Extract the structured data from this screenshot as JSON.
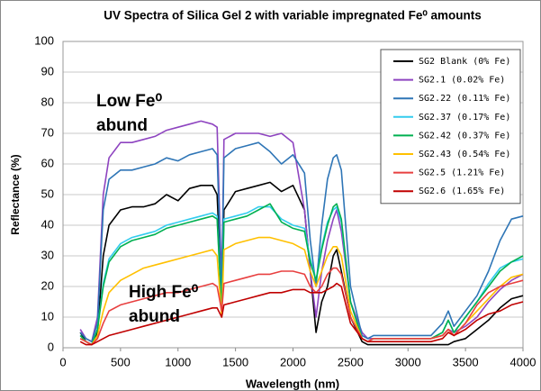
{
  "chart_data": {
    "type": "line",
    "title": "UV Spectra of Silica Gel 2 with variable impregnated Fe⁰ amounts",
    "x_label": "Wavelength (nm)",
    "y_label": "Reflectance (%)",
    "annotations": [
      "Low Fe⁰",
      "abund",
      "High Fe⁰",
      "abund"
    ],
    "x": [
      150,
      200,
      250,
      300,
      350,
      400,
      500,
      600,
      700,
      800,
      900,
      1000,
      1100,
      1200,
      1300,
      1340,
      1380,
      1400,
      1500,
      1600,
      1700,
      1800,
      1900,
      2000,
      2100,
      2150,
      2200,
      2250,
      2300,
      2350,
      2380,
      2420,
      2500,
      2600,
      2650,
      2700,
      2800,
      3000,
      3200,
      3300,
      3350,
      3400,
      3500,
      3600,
      3700,
      3800,
      3900,
      4000
    ],
    "xlim": [
      0,
      4000
    ],
    "xticks": [
      0,
      500,
      1000,
      1500,
      2000,
      2500,
      3000,
      3500,
      4000
    ],
    "ylim": [
      0,
      100
    ],
    "yticks": [
      0,
      10,
      20,
      30,
      40,
      50,
      60,
      70,
      80,
      90,
      100
    ],
    "grid": true,
    "legend": "upper right",
    "series": [
      {
        "name": "SG2 Blank (0% Fe)",
        "color": "#000000",
        "values": [
          5,
          2,
          1,
          5,
          30,
          40,
          45,
          46,
          46,
          47,
          50,
          48,
          52,
          53,
          53,
          50,
          15,
          45,
          51,
          52,
          53,
          54,
          51,
          53,
          45,
          25,
          5,
          15,
          20,
          30,
          32,
          25,
          10,
          2,
          1,
          1,
          1,
          1,
          1,
          1,
          1,
          2,
          3,
          6,
          9,
          13,
          16,
          17
        ]
      },
      {
        "name": "SG2.1 (0.02% Fe)",
        "color": "#8e44c0",
        "values": [
          6,
          3,
          2,
          10,
          50,
          62,
          67,
          67,
          68,
          69,
          71,
          72,
          73,
          74,
          73,
          72,
          20,
          68,
          70,
          70,
          70,
          69,
          70,
          67,
          45,
          25,
          10,
          25,
          35,
          42,
          45,
          38,
          15,
          5,
          3,
          3,
          3,
          3,
          3,
          4,
          6,
          5,
          7,
          10,
          15,
          19,
          22,
          24
        ]
      },
      {
        "name": "SG2.22 (0.11% Fe)",
        "color": "#2e75b6",
        "values": [
          5,
          3,
          2,
          8,
          45,
          55,
          58,
          58,
          59,
          60,
          62,
          61,
          63,
          64,
          65,
          63,
          18,
          62,
          65,
          66,
          67,
          64,
          60,
          63,
          57,
          35,
          20,
          40,
          55,
          62,
          63,
          58,
          20,
          4,
          3,
          4,
          4,
          4,
          4,
          8,
          12,
          7,
          12,
          17,
          25,
          35,
          42,
          43
        ]
      },
      {
        "name": "SG2.37 (0.17% Fe)",
        "color": "#33ccee",
        "values": [
          4,
          2,
          1,
          6,
          21,
          29,
          34,
          36,
          37,
          38,
          40,
          41,
          42,
          43,
          44,
          43,
          12,
          42,
          43,
          44,
          46,
          46,
          42,
          40,
          39,
          29,
          22,
          33,
          41,
          45,
          46,
          41,
          15,
          3,
          2,
          3,
          3,
          3,
          3,
          5,
          9,
          5,
          10,
          15,
          21,
          26,
          28,
          29
        ]
      },
      {
        "name": "SG2.42 (0.37% Fe)",
        "color": "#00b050",
        "values": [
          4,
          2,
          1,
          6,
          20,
          28,
          33,
          35,
          36,
          37,
          39,
          40,
          41,
          42,
          43,
          42,
          12,
          41,
          42,
          43,
          45,
          47,
          41,
          39,
          38,
          28,
          22,
          32,
          40,
          46,
          47,
          42,
          15,
          3,
          2,
          3,
          3,
          3,
          3,
          5,
          9,
          5,
          10,
          15,
          20,
          25,
          28,
          30
        ]
      },
      {
        "name": "SG2.43 (0.54% Fe)",
        "color": "#ffc000",
        "values": [
          3,
          2,
          1,
          4,
          12,
          18,
          22,
          24,
          26,
          27,
          28,
          29,
          30,
          31,
          32,
          30,
          10,
          32,
          34,
          35,
          36,
          36,
          35,
          34,
          32,
          25,
          20,
          25,
          30,
          33,
          33,
          30,
          12,
          3,
          2,
          3,
          3,
          3,
          3,
          4,
          6,
          4,
          8,
          12,
          16,
          20,
          23,
          24
        ]
      },
      {
        "name": "SG2.5 (1.21% Fe)",
        "color": "#e84040",
        "values": [
          3,
          2,
          1,
          3,
          8,
          12,
          14,
          15,
          16,
          17,
          18,
          18,
          19,
          20,
          21,
          20,
          12,
          21,
          22,
          23,
          24,
          24,
          25,
          25,
          24,
          20,
          18,
          20,
          24,
          26,
          26,
          24,
          10,
          3,
          2,
          3,
          3,
          3,
          3,
          4,
          6,
          4,
          8,
          14,
          18,
          20,
          21,
          22
        ]
      },
      {
        "name": "SG2.6 (1.65% Fe)",
        "color": "#c00000",
        "values": [
          2,
          1,
          1,
          2,
          3,
          4,
          5,
          6,
          7,
          8,
          9,
          10,
          11,
          12,
          13,
          13,
          10,
          14,
          15,
          16,
          17,
          18,
          18,
          19,
          19,
          18,
          18,
          18,
          19,
          20,
          21,
          20,
          8,
          3,
          2,
          2,
          2,
          2,
          2,
          3,
          5,
          4,
          6,
          9,
          11,
          12,
          14,
          15
        ]
      }
    ]
  }
}
